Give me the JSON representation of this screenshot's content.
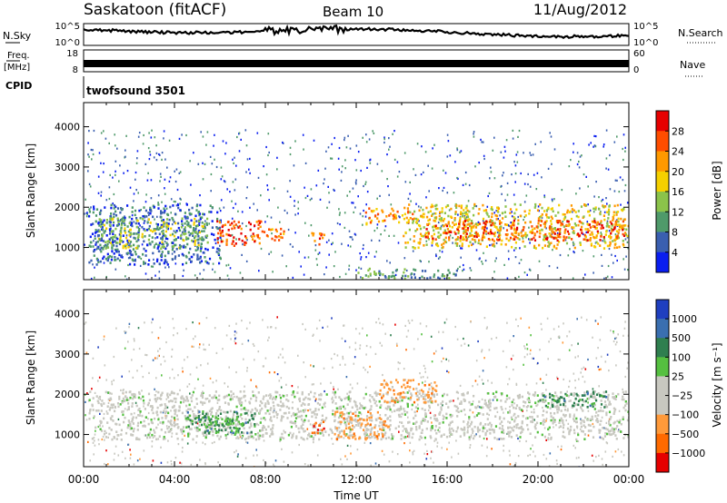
{
  "header": {
    "station": "Saskatoon (fitACF)",
    "beam": "Beam 10",
    "date": "11/Aug/2012"
  },
  "status_panels": {
    "nsky": {
      "label": "N.Sky",
      "ticks": [
        "10^5",
        "10^0"
      ]
    },
    "nsearch": {
      "label": "N.Search",
      "ticks": [
        "10^5",
        "10^0"
      ]
    },
    "freq": {
      "label_line1": "Freq.",
      "label_line2": "[MHz]",
      "ticks": [
        "18",
        "8"
      ]
    },
    "nave": {
      "label": "Nave",
      "ticks": [
        "60",
        "0"
      ]
    },
    "cpid": {
      "label": "CPID",
      "value": "twofsound 3501"
    }
  },
  "chart_data": [
    {
      "type": "heatmap",
      "quantity": "Power",
      "xlabel": "",
      "ylabel": "Slant Range [km]",
      "xlim_hours": [
        0,
        24
      ],
      "ylim": [
        200,
        4600
      ],
      "yticks": [
        1000,
        2000,
        3000,
        4000
      ],
      "colorbar": {
        "label": "Power [dB]",
        "ticks": [
          "28",
          "24",
          "20",
          "16",
          "12",
          "8",
          "4"
        ],
        "colors": [
          "#e60000",
          "#ff4d00",
          "#ff9900",
          "#f5d000",
          "#8bc34a",
          "#4f9a6a",
          "#3a5fb0",
          "#0a1ef0"
        ]
      },
      "regions": [
        {
          "x": [
            0.2,
            6.0
          ],
          "y": [
            600,
            2100
          ],
          "level": 1
        },
        {
          "x": [
            0.6,
            5.5
          ],
          "y": [
            1000,
            1750
          ],
          "level": 3
        },
        {
          "x": [
            5.8,
            7.9
          ],
          "y": [
            1050,
            1700
          ],
          "level": 6
        },
        {
          "x": [
            7.8,
            9.0
          ],
          "y": [
            1200,
            1500
          ],
          "level": 5
        },
        {
          "x": [
            10.0,
            10.6
          ],
          "y": [
            1050,
            1400
          ],
          "level": 6
        },
        {
          "x": [
            12.3,
            14.5
          ],
          "y": [
            1600,
            2000
          ],
          "level": 5
        },
        {
          "x": [
            14.0,
            24.0
          ],
          "y": [
            1000,
            2100
          ],
          "level": 4
        },
        {
          "x": [
            15.0,
            23.8
          ],
          "y": [
            1200,
            1700
          ],
          "level": 6
        },
        {
          "x": [
            12.0,
            16.5
          ],
          "y": [
            250,
            500
          ],
          "level": 2
        }
      ]
    },
    {
      "type": "heatmap",
      "quantity": "Velocity",
      "xlabel": "Time UT",
      "ylabel": "Slant Range [km]",
      "xlim_hours": [
        0,
        24
      ],
      "ylim": [
        200,
        4600
      ],
      "yticks": [
        1000,
        2000,
        3000,
        4000
      ],
      "xticks": [
        "00:00",
        "04:00",
        "08:00",
        "12:00",
        "16:00",
        "20:00",
        "00:00"
      ],
      "colorbar": {
        "label": "Velocity [m s⁻¹]",
        "ticks": [
          "1000",
          "500",
          "100",
          "25",
          "−25",
          "−100",
          "−500",
          "−1000"
        ],
        "colors": [
          "#1f3fbf",
          "#3a6fb0",
          "#2f7f4f",
          "#55c040",
          "#c8c8c0",
          "#c8c8c0",
          "#ff9a3a",
          "#ff6a00",
          "#e60000"
        ]
      },
      "regions": [
        {
          "x": [
            0.2,
            24.0
          ],
          "y": [
            900,
            2100
          ],
          "level": 4
        },
        {
          "x": [
            4.5,
            7.5
          ],
          "y": [
            1050,
            1600
          ],
          "level": 2
        },
        {
          "x": [
            5.0,
            7.0
          ],
          "y": [
            1100,
            1500
          ],
          "level": 3
        },
        {
          "x": [
            11.0,
            13.5
          ],
          "y": [
            900,
            1600
          ],
          "level": 6
        },
        {
          "x": [
            13.0,
            15.5
          ],
          "y": [
            1800,
            2400
          ],
          "level": 6
        },
        {
          "x": [
            10.0,
            10.6
          ],
          "y": [
            1050,
            1400
          ],
          "level": 7
        },
        {
          "x": [
            20.0,
            23.0
          ],
          "y": [
            1700,
            2100
          ],
          "level": 2
        }
      ]
    }
  ]
}
